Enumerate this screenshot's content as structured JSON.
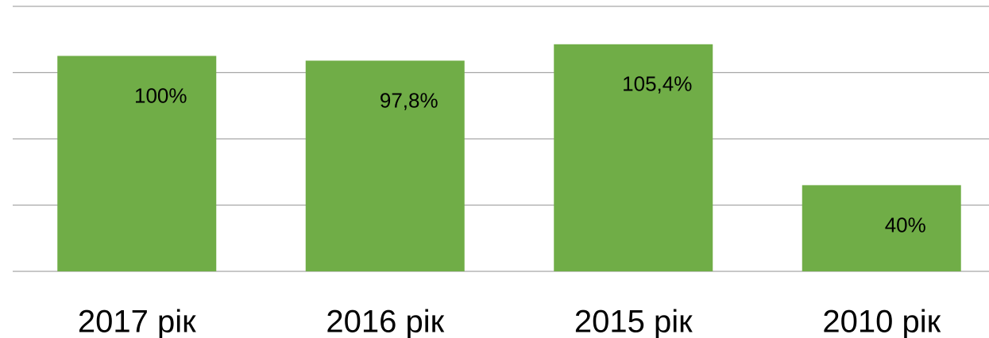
{
  "chart_data": {
    "type": "bar",
    "categories": [
      "2017 рік",
      "2016 рік",
      "2015 рік",
      "2010 рік"
    ],
    "values": [
      100,
      97.8,
      105.4,
      40
    ],
    "value_labels": [
      "100%",
      "97,8%",
      "105,4%",
      "40%"
    ],
    "color": "#70ad47",
    "ylim": [
      0,
      123
    ],
    "yticks": [
      0,
      30.75,
      61.5,
      92.25,
      123
    ],
    "grid": true
  }
}
